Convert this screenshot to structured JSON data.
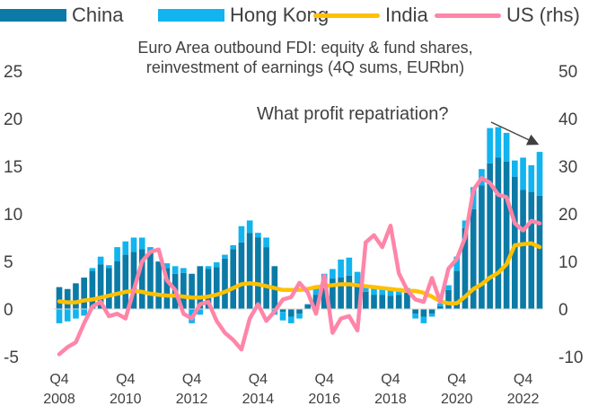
{
  "chart_data": {
    "type": "bar",
    "title": "Euro Area outbound FDI: equity & fund shares,\nreinvestment of earnings (4Q sums, EURbn)",
    "annotation": "What profit repatriation?",
    "stacked": true,
    "left_axis": {
      "ylim": [
        -5,
        25
      ],
      "ticks": [
        "25",
        "20",
        "15",
        "10",
        "5",
        "0",
        "-5"
      ]
    },
    "right_axis": {
      "ylim": [
        -10,
        50
      ],
      "ticks": [
        "50",
        "40",
        "30",
        "20",
        "10",
        "0",
        "-10"
      ]
    },
    "x_labels": [
      {
        "q": "Q4",
        "year": "2008"
      },
      {
        "q": "Q4",
        "year": "2010"
      },
      {
        "q": "Q4",
        "year": "2012"
      },
      {
        "q": "Q4",
        "year": "2014"
      },
      {
        "q": "Q4",
        "year": "2016"
      },
      {
        "q": "Q4",
        "year": "2018"
      },
      {
        "q": "Q4",
        "year": "2020"
      },
      {
        "q": "Q4",
        "year": "2022"
      }
    ],
    "categories": [
      "2008Q4",
      "2009Q1",
      "2009Q2",
      "2009Q3",
      "2009Q4",
      "2010Q1",
      "2010Q2",
      "2010Q3",
      "2010Q4",
      "2011Q1",
      "2011Q2",
      "2011Q3",
      "2011Q4",
      "2012Q1",
      "2012Q2",
      "2012Q3",
      "2012Q4",
      "2013Q1",
      "2013Q2",
      "2013Q3",
      "2013Q4",
      "2014Q1",
      "2014Q2",
      "2014Q3",
      "2014Q4",
      "2015Q1",
      "2015Q2",
      "2015Q3",
      "2015Q4",
      "2016Q1",
      "2016Q2",
      "2016Q3",
      "2016Q4",
      "2017Q1",
      "2017Q2",
      "2017Q3",
      "2017Q4",
      "2018Q1",
      "2018Q2",
      "2018Q3",
      "2018Q4",
      "2019Q1",
      "2019Q2",
      "2019Q3",
      "2019Q4",
      "2020Q1",
      "2020Q2",
      "2020Q3",
      "2020Q4",
      "2021Q1",
      "2021Q2",
      "2021Q3",
      "2021Q4",
      "2022Q1",
      "2022Q2",
      "2022Q3",
      "2022Q4",
      "2023Q1",
      "2023Q2"
    ],
    "series": [
      {
        "name": "China",
        "axis": "left",
        "kind": "bar",
        "color": "#0b7aa6",
        "values": [
          2.3,
          2.1,
          2.7,
          3.3,
          4.0,
          4.7,
          4.3,
          5.0,
          5.7,
          6.0,
          6.3,
          6.0,
          5.0,
          4.3,
          3.7,
          3.8,
          3.7,
          4.5,
          4.2,
          4.4,
          5.3,
          6.3,
          7.0,
          8.0,
          7.5,
          6.5,
          4.5,
          -0.3,
          -0.8,
          -0.5,
          0.5,
          1.5,
          2.5,
          3.2,
          3.3,
          3.5,
          2.8,
          1.8,
          1.5,
          1.5,
          1.4,
          1.5,
          1.7,
          -0.5,
          -0.8,
          -0.5,
          0.3,
          2.0,
          4.0,
          8.5,
          10.5,
          13.0,
          15.3,
          15.9,
          15.5,
          13.9,
          12.5,
          12.3,
          11.9
        ]
      },
      {
        "name": "Hong Kong",
        "axis": "left",
        "kind": "bar",
        "color": "#11b4ee",
        "values": [
          -1.5,
          -1.3,
          -1.0,
          -0.7,
          0.3,
          0.8,
          0.3,
          1.5,
          1.4,
          1.5,
          1.2,
          0.5,
          0.0,
          0.5,
          0.8,
          0.5,
          -1.5,
          -0.6,
          0.3,
          0.5,
          0.4,
          0.4,
          1.7,
          1.3,
          0.5,
          1.0,
          -0.6,
          -0.9,
          -0.7,
          -0.5,
          0.0,
          0.8,
          1.2,
          1.0,
          1.9,
          1.9,
          1.1,
          0.6,
          0.7,
          0.8,
          0.8,
          0.7,
          0.5,
          -0.5,
          -0.7,
          -0.3,
          0.3,
          0.5,
          1.5,
          0.8,
          2.3,
          1.7,
          3.7,
          3.2,
          3.0,
          1.7,
          3.4,
          2.8,
          4.6
        ]
      },
      {
        "name": "India",
        "axis": "left",
        "kind": "line",
        "color": "#ffc000",
        "values": [
          0.8,
          0.7,
          0.7,
          0.9,
          1.0,
          1.2,
          1.4,
          1.6,
          1.8,
          1.9,
          1.8,
          1.6,
          1.5,
          1.4,
          1.4,
          1.3,
          1.2,
          1.2,
          1.3,
          1.5,
          1.8,
          2.2,
          2.6,
          2.7,
          2.6,
          2.4,
          2.2,
          2.0,
          2.0,
          2.0,
          2.1,
          2.3,
          2.4,
          2.5,
          2.6,
          2.6,
          2.5,
          2.4,
          2.3,
          2.2,
          2.1,
          2.0,
          1.9,
          1.9,
          1.7,
          1.3,
          0.8,
          0.6,
          0.6,
          1.3,
          2.1,
          2.6,
          3.3,
          3.8,
          4.7,
          6.7,
          6.8,
          6.9,
          6.5
        ]
      },
      {
        "name": "US (rhs)",
        "axis": "right",
        "kind": "line",
        "color": "#ff85a8",
        "values": [
          -9.5,
          -8,
          -7,
          -3,
          0.5,
          1.5,
          -1.5,
          -1,
          -2,
          4,
          10,
          12,
          12.5,
          6,
          4,
          -1,
          -2,
          1,
          1.5,
          -2.5,
          -5,
          -6.5,
          -8.5,
          -2,
          1,
          -2.5,
          -0.5,
          2,
          2.5,
          5.5,
          3.5,
          -1,
          7,
          -5,
          -2,
          -1.5,
          -4.5,
          14,
          15.5,
          13,
          17.5,
          7.5,
          4,
          2,
          1.5,
          6.5,
          1.5,
          8.5,
          10.5,
          15,
          25,
          27.5,
          26.5,
          24,
          23.5,
          18,
          16.5,
          18.5,
          18
        ]
      }
    ]
  }
}
